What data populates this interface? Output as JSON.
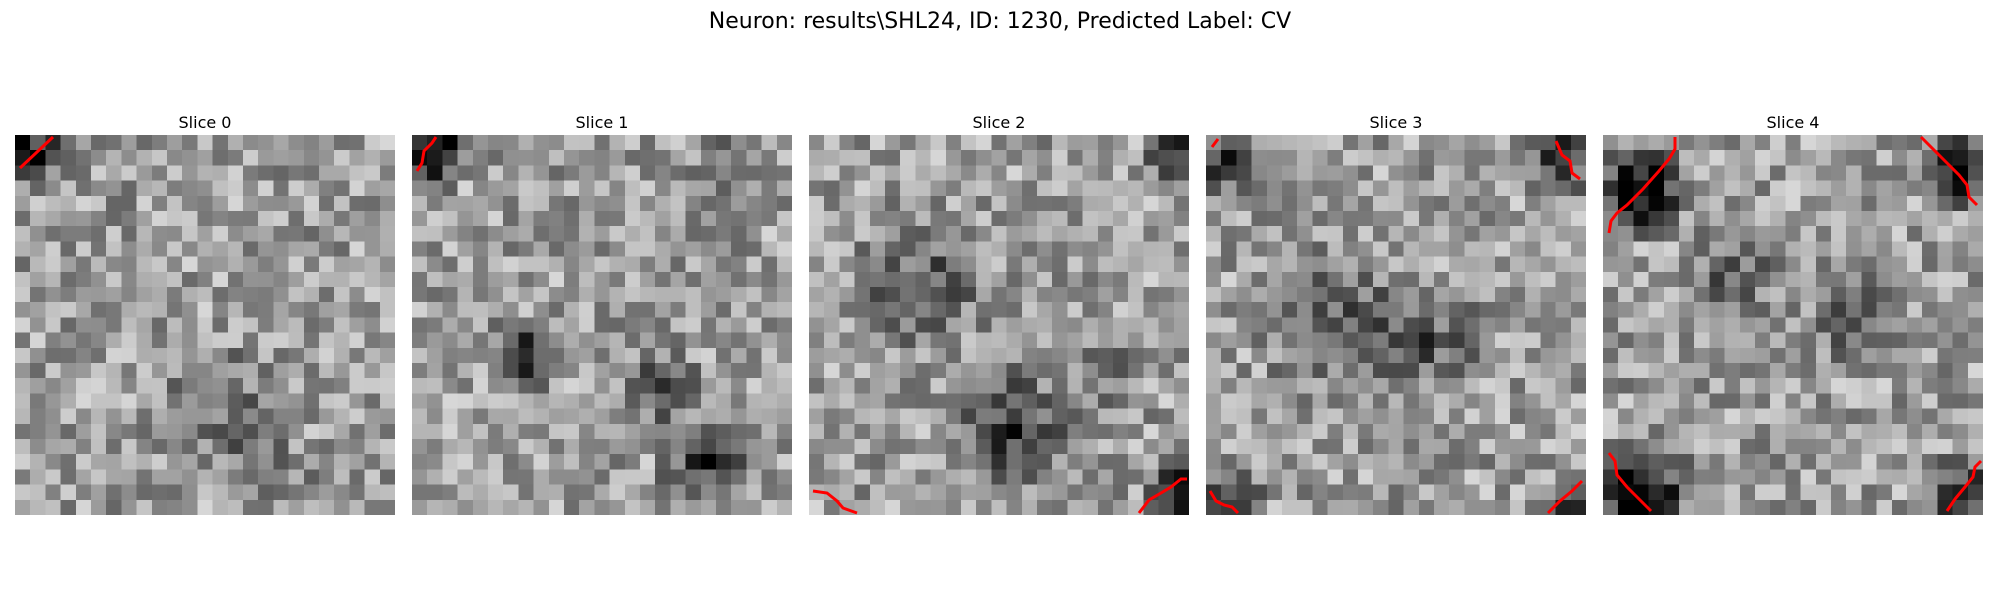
{
  "figure": {
    "title": "Neuron: results\\SHL24, ID: 1230, Predicted Label: CV"
  },
  "panels": [
    {
      "title": "Slice 0"
    },
    {
      "title": "Slice 1"
    },
    {
      "title": "Slice 2"
    },
    {
      "title": "Slice 3"
    },
    {
      "title": "Slice 4"
    }
  ],
  "colors": {
    "background": "#ffffff",
    "contour": "#ff0000",
    "colormap": "gray"
  }
}
